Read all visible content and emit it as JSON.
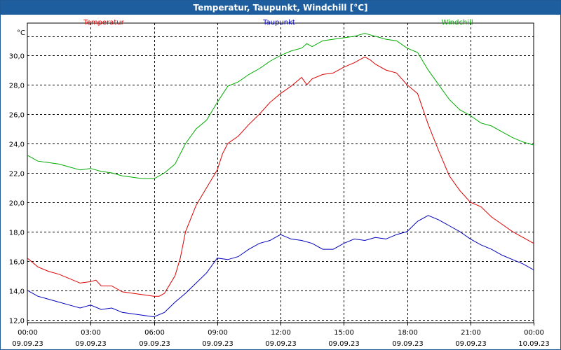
{
  "window": {
    "title": "Temperatur, Taupunkt, Windchill [°C]"
  },
  "chart_data": {
    "type": "line",
    "title": "Temperatur, Taupunkt, Windchill [°C]",
    "ylabel": "°C",
    "ylim": [
      11.8,
      32.2
    ],
    "y_ticks": [
      "12,0",
      "14,0",
      "16,0",
      "18,0",
      "20,0",
      "22,0",
      "24,0",
      "26,0",
      "28,0",
      "30,0"
    ],
    "y_tick_values": [
      12,
      14,
      16,
      18,
      20,
      22,
      24,
      26,
      28,
      30
    ],
    "x_ticks": [
      {
        "time": "00:00",
        "date": "09.09.23",
        "hour": 0
      },
      {
        "time": "03:00",
        "date": "09.09.23",
        "hour": 3
      },
      {
        "time": "06:00",
        "date": "09.09.23",
        "hour": 6
      },
      {
        "time": "09:00",
        "date": "09.09.23",
        "hour": 9
      },
      {
        "time": "12:00",
        "date": "09.09.23",
        "hour": 12
      },
      {
        "time": "15:00",
        "date": "09.09.23",
        "hour": 15
      },
      {
        "time": "18:00",
        "date": "09.09.23",
        "hour": 18
      },
      {
        "time": "21:00",
        "date": "09.09.23",
        "hour": 21
      },
      {
        "time": "00:00",
        "date": "10.09.23",
        "hour": 24
      }
    ],
    "xlim": [
      0,
      24
    ],
    "grid": true,
    "legend_position": "top",
    "series": [
      {
        "name": "Temperatur",
        "color": "#dd0000",
        "x": [
          0,
          0.5,
          1,
          1.5,
          2,
          2.5,
          3,
          3.25,
          3.5,
          4,
          4.5,
          5,
          5.5,
          6,
          6.25,
          6.5,
          7,
          7.25,
          7.5,
          8,
          8.5,
          9,
          9.25,
          9.5,
          10,
          10.5,
          11,
          11.5,
          12,
          12.5,
          13,
          13.25,
          13.5,
          14,
          14.5,
          15,
          15.5,
          16,
          16.25,
          16.5,
          17,
          17.5,
          18,
          18.5,
          19,
          19.5,
          20,
          20.5,
          21,
          21.5,
          22,
          22.5,
          23,
          23.5,
          24
        ],
        "y": [
          16.2,
          15.6,
          15.3,
          15.1,
          14.8,
          14.5,
          14.6,
          14.7,
          14.3,
          14.3,
          13.9,
          13.8,
          13.7,
          13.6,
          13.6,
          13.8,
          15.0,
          16.2,
          18.0,
          19.8,
          21.0,
          22.2,
          23.3,
          24.0,
          24.5,
          25.3,
          26.0,
          26.8,
          27.4,
          27.9,
          28.5,
          28.0,
          28.4,
          28.7,
          28.8,
          29.2,
          29.5,
          29.9,
          29.7,
          29.4,
          29.0,
          28.8,
          28.0,
          27.4,
          25.3,
          23.5,
          21.8,
          20.8,
          20.0,
          19.7,
          19.0,
          18.5,
          18.0,
          17.6,
          17.2
        ]
      },
      {
        "name": "Taupunkt",
        "color": "#0000bb",
        "x": [
          0,
          0.5,
          1,
          1.5,
          2,
          2.5,
          3,
          3.5,
          4,
          4.5,
          5,
          5.5,
          6,
          6.5,
          7,
          7.5,
          8,
          8.5,
          9,
          9.5,
          10,
          10.5,
          11,
          11.5,
          12,
          12.5,
          13,
          13.5,
          14,
          14.5,
          15,
          15.5,
          16,
          16.5,
          17,
          17.5,
          18,
          18.5,
          19,
          19.5,
          20,
          20.5,
          21,
          21.5,
          22,
          22.5,
          23,
          23.5,
          24
        ],
        "y": [
          14.0,
          13.6,
          13.4,
          13.2,
          13.0,
          12.8,
          13.0,
          12.7,
          12.8,
          12.5,
          12.4,
          12.3,
          12.2,
          12.5,
          13.2,
          13.8,
          14.5,
          15.2,
          16.2,
          16.1,
          16.3,
          16.8,
          17.2,
          17.4,
          17.8,
          17.5,
          17.4,
          17.2,
          16.8,
          16.8,
          17.2,
          17.5,
          17.4,
          17.6,
          17.5,
          17.8,
          18.0,
          18.7,
          19.1,
          18.8,
          18.4,
          18.0,
          17.5,
          17.1,
          16.8,
          16.4,
          16.1,
          15.8,
          15.4
        ]
      },
      {
        "name": "Windchill",
        "color": "#00aa00",
        "x": [
          0,
          0.5,
          1,
          1.5,
          2,
          2.5,
          3,
          3.5,
          4,
          4.5,
          5,
          5.5,
          6,
          6.5,
          7,
          7.5,
          8,
          8.5,
          9,
          9.5,
          10,
          10.5,
          11,
          11.5,
          12,
          12.5,
          13,
          13.25,
          13.5,
          14,
          14.5,
          15,
          15.5,
          16,
          16.25,
          16.5,
          17,
          17.5,
          18,
          18.5,
          19,
          19.5,
          20,
          20.5,
          21,
          21.5,
          22,
          22.5,
          23,
          23.5,
          24
        ],
        "y": [
          23.2,
          22.8,
          22.7,
          22.6,
          22.4,
          22.2,
          22.3,
          22.1,
          22.0,
          21.8,
          21.7,
          21.6,
          21.6,
          22.0,
          22.6,
          24.0,
          25.0,
          25.6,
          26.8,
          27.9,
          28.2,
          28.7,
          29.1,
          29.6,
          30.0,
          30.3,
          30.5,
          30.8,
          30.6,
          31.0,
          31.1,
          31.2,
          31.3,
          31.5,
          31.4,
          31.3,
          31.1,
          31.0,
          30.5,
          30.2,
          29.0,
          28.0,
          27.0,
          26.3,
          25.9,
          25.4,
          25.2,
          24.8,
          24.4,
          24.1,
          23.9
        ]
      }
    ]
  }
}
